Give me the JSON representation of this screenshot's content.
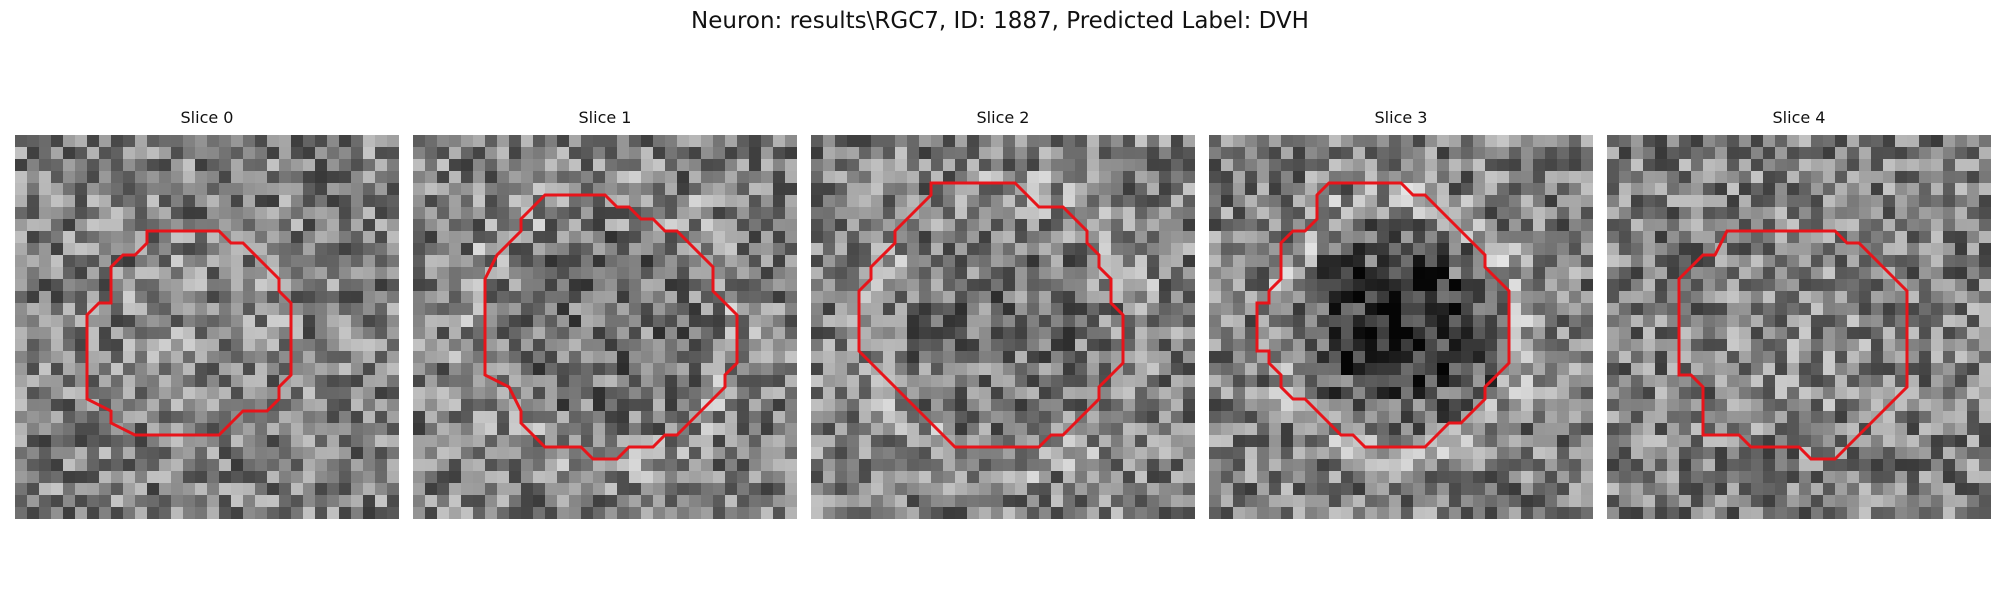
{
  "figure": {
    "title": "Neuron: results\\RGC7, ID: 1887, Predicted Label: DVH"
  },
  "colors": {
    "contour": "#e8141a",
    "background": "#ffffff"
  },
  "panels": [
    {
      "label": "Slice 0",
      "pattern": "bright-dense",
      "seed": 11
    },
    {
      "label": "Slice 1",
      "pattern": "ring-faint",
      "seed": 23
    },
    {
      "label": "Slice 2",
      "pattern": "ring-faint",
      "seed": 37
    },
    {
      "label": "Slice 3",
      "pattern": "ring-dark-core",
      "seed": 51
    },
    {
      "label": "Slice 4",
      "pattern": "bright-dense",
      "seed": 67
    }
  ]
}
